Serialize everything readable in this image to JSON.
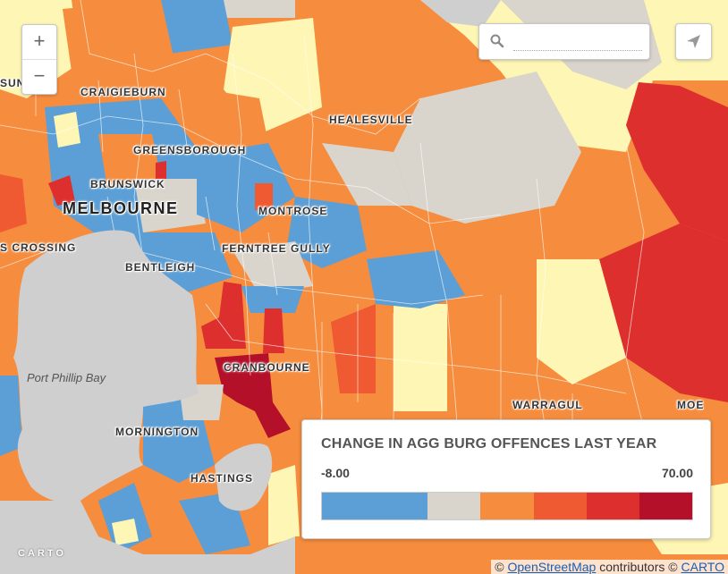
{
  "colors": {
    "water": "#cfcfcf",
    "c1_blue": "#5b9fd6",
    "c2_grey": "#dad5cc",
    "c3_orange": "#f68c3d",
    "c4_redorange": "#f05a32",
    "c5_red": "#de2f2f",
    "c6_darkred": "#b5102a",
    "pale_yellow": "#fdf6b4"
  },
  "places": {
    "sunbury_partial": "SUN",
    "craigieburn": "CRAIGIEBURN",
    "healesville": "HEALESVILLE",
    "greensborough": "GREENSBOROUGH",
    "brunswick": "BRUNSWICK",
    "melbourne": "MELBOURNE",
    "montrose": "MONTROSE",
    "crossing_partial": "S CROSSING",
    "ferntree_gully": "FERNTREE GULLY",
    "bentleigh": "BENTLEIGH",
    "port_phillip_bay": "Port Phillip Bay",
    "cranbourne": "CRANBOURNE",
    "warragul": "WARRAGUL",
    "moe": "MOE",
    "mornington": "MORNINGTON",
    "hastings": "HASTINGS"
  },
  "controls": {
    "zoom_in": "+",
    "zoom_out": "−",
    "search_placeholder": "",
    "search_icon": "search-icon",
    "share_icon": "share-icon"
  },
  "legend": {
    "title": "CHANGE IN AGG BURG OFFENCES LAST YEAR",
    "min_label": "-8.00",
    "max_label": "70.00",
    "bins": [
      "#5b9fd6",
      "#5b9fd6",
      "#dad5cc",
      "#f68c3d",
      "#f05a32",
      "#de2f2f",
      "#b5102a"
    ]
  },
  "branding": {
    "carto_logo": "CARTO"
  },
  "attribution": {
    "copyright1": "©",
    "osm_link": "OpenStreetMap",
    "contributors": "contributors",
    "copyright2": "©",
    "carto_link": "CARTO"
  }
}
